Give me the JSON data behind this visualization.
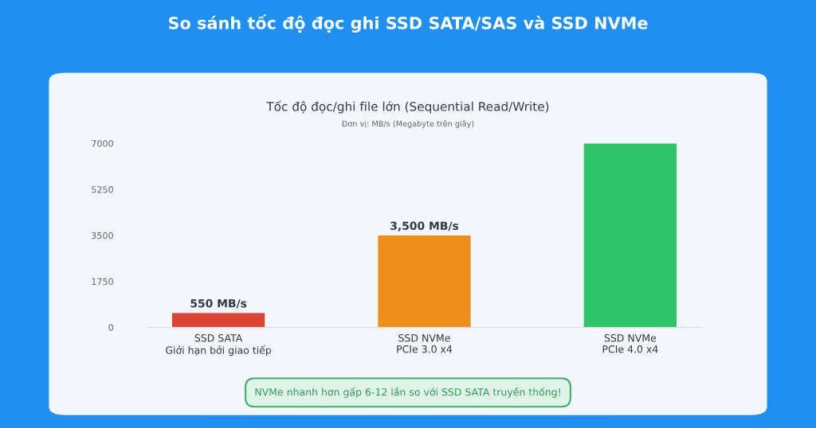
{
  "chart_data": {
    "type": "bar",
    "title": "So sánh tốc độ đọc ghi SSD SATA/SAS và SSD NVMe",
    "subtitle": "Tốc độ đọc/ghi file lớn (Sequential Read/Write)",
    "categories": [
      "SSD SATA\nGiới hạn bởi giao tiếp",
      "SSD NVMe\nPCIe 3.0 x4",
      "SSD NVMe\nPCIe 4.0 x4"
    ],
    "values": [
      550,
      3500,
      7000
    ],
    "colors": [
      "#dc4436",
      "#ee8f1c",
      "#2ec46a"
    ],
    "value_labels": [
      "550 MB/s",
      "3,500 MB/s",
      null
    ],
    "ylim": [
      0,
      7000
    ],
    "yticks": [
      0,
      1750,
      3500,
      5250,
      7000
    ],
    "grid": false,
    "annotations": [
      "Đơn vị: MB/s (Megabyte trên giây)",
      "NVMe nhanh hơn gấp 6-12 lần so với SSD SATA truyền thống!"
    ]
  }
}
